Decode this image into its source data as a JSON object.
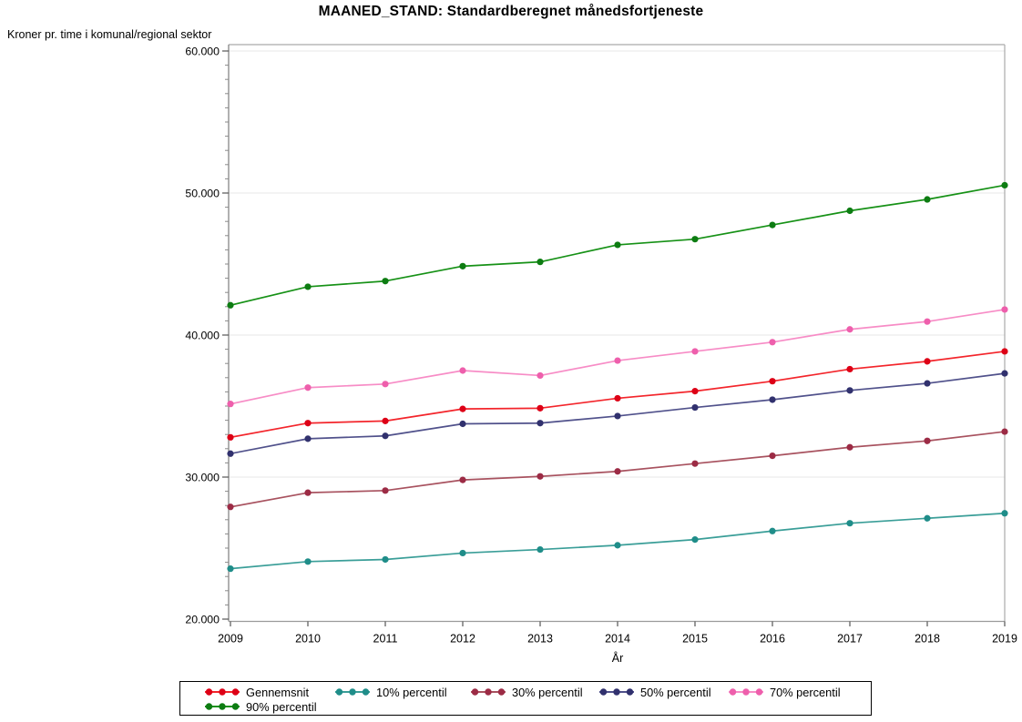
{
  "title": "MAANED_STAND: Standardberegnet månedsfortjeneste",
  "y_axis_title": "Kroner pr. time i komunal/regional sektor",
  "x_axis_title": "År",
  "chart_data": {
    "type": "line",
    "x": [
      2009,
      2010,
      2011,
      2012,
      2013,
      2014,
      2015,
      2016,
      2017,
      2018,
      2019
    ],
    "series": [
      {
        "name": "Gennemsnit",
        "line_color": "#f3252b",
        "marker_color": "#dd0016",
        "values": [
          32800,
          33800,
          33950,
          34800,
          34850,
          35550,
          36050,
          36750,
          37600,
          38150,
          38850
        ]
      },
      {
        "name": "10% percentil",
        "line_color": "#3a9e98",
        "marker_color": "#1f8d89",
        "values": [
          23550,
          24050,
          24200,
          24650,
          24900,
          25200,
          25600,
          26200,
          26750,
          27100,
          27450
        ]
      },
      {
        "name": "30% percentil",
        "line_color": "#a8525f",
        "marker_color": "#9c2b45",
        "values": [
          27900,
          28900,
          29050,
          29800,
          30050,
          30400,
          30950,
          31500,
          32100,
          32550,
          33200
        ]
      },
      {
        "name": "50% percentil",
        "line_color": "#50518b",
        "marker_color": "#31316e",
        "values": [
          31650,
          32700,
          32900,
          33750,
          33800,
          34300,
          34900,
          35450,
          36100,
          36600,
          37300
        ]
      },
      {
        "name": "70% percentil",
        "line_color": "#f78cc6",
        "marker_color": "#ee5fac",
        "values": [
          35150,
          36300,
          36550,
          37500,
          37150,
          38200,
          38850,
          39500,
          40400,
          40950,
          41800
        ]
      },
      {
        "name": "90% percentil",
        "line_color": "#169116",
        "marker_color": "#0d7c12",
        "values": [
          42100,
          43400,
          43800,
          44850,
          45150,
          46350,
          46750,
          47750,
          48750,
          49550,
          50550
        ]
      }
    ],
    "ylabel": "Kroner pr. time i komunal/regional sektor",
    "xlabel": "År",
    "ylim": [
      20000,
      60000
    ],
    "y_major_ticks": [
      20000,
      30000,
      40000,
      50000,
      60000
    ],
    "y_tick_labels": [
      "20.000",
      "30.000",
      "40.000",
      "50.000",
      "60.000"
    ],
    "y_minor_step": 1000,
    "grid": "horizontal-major",
    "legend_position": "bottom",
    "legend_rows": [
      [
        "Gennemsnit",
        "10% percentil",
        "30% percentil",
        "50% percentil",
        "70% percentil"
      ],
      [
        "90% percentil"
      ]
    ]
  }
}
